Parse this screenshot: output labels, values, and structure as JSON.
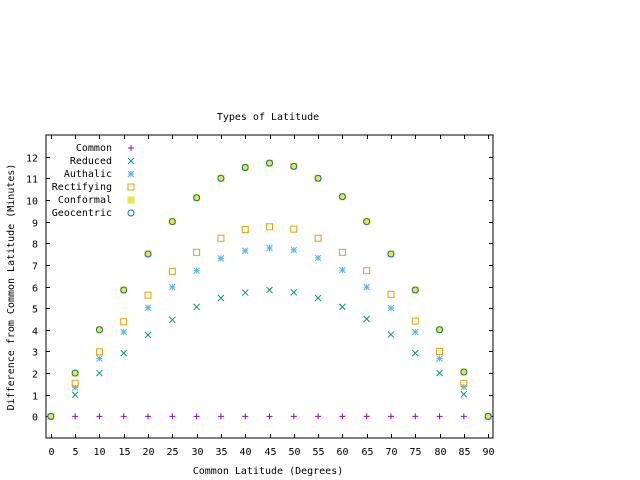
{
  "chart_data": {
    "type": "scatter",
    "title": "Types of Latitude",
    "xlabel": "Common Latitude (Degrees)",
    "ylabel": "Difference from Common Latitude (Minutes)",
    "xlim": [
      -1,
      91
    ],
    "ylim": [
      -1,
      13
    ],
    "xticks": [
      0,
      5,
      10,
      15,
      20,
      25,
      30,
      35,
      40,
      45,
      50,
      55,
      60,
      65,
      70,
      75,
      80,
      85,
      90
    ],
    "yticks": [
      0,
      1,
      2,
      3,
      4,
      5,
      6,
      7,
      8,
      9,
      10,
      11,
      12
    ],
    "legend_position": "top-left",
    "x": [
      0,
      5,
      10,
      15,
      20,
      25,
      30,
      35,
      40,
      45,
      50,
      55,
      60,
      65,
      70,
      75,
      80,
      85,
      90
    ],
    "series": [
      {
        "name": "Common",
        "marker": "plus",
        "color": "#9400d3",
        "values": [
          0,
          0,
          0,
          0,
          0,
          0,
          0,
          0,
          0,
          0,
          0,
          0,
          0,
          0,
          0,
          0,
          0,
          0,
          0
        ]
      },
      {
        "name": "Reduced",
        "marker": "cross",
        "color": "#009e73",
        "values": [
          0,
          1.0,
          2.0,
          2.92,
          3.76,
          4.46,
          5.06,
          5.47,
          5.72,
          5.84,
          5.73,
          5.47,
          5.06,
          4.5,
          3.78,
          2.92,
          2.0,
          1.02,
          0
        ]
      },
      {
        "name": "Authalic",
        "marker": "star",
        "color": "#56b4e9",
        "values": [
          0,
          1.33,
          2.67,
          3.9,
          5.02,
          5.97,
          6.73,
          7.3,
          7.65,
          7.78,
          7.69,
          7.32,
          6.76,
          5.97,
          5.0,
          3.9,
          2.67,
          1.36,
          0
        ]
      },
      {
        "name": "Rectifying",
        "marker": "square",
        "color": "#e69f00",
        "values": [
          0,
          1.53,
          2.98,
          4.37,
          5.6,
          6.7,
          7.58,
          8.23,
          8.63,
          8.76,
          8.65,
          8.23,
          7.58,
          6.73,
          5.64,
          4.4,
          3.0,
          1.53,
          0
        ]
      },
      {
        "name": "Conformal",
        "marker": "filled-square",
        "color": "#f0e442",
        "values": [
          0,
          2.0,
          4.0,
          5.84,
          7.5,
          9.0,
          10.1,
          11.0,
          11.5,
          11.7,
          11.55,
          11.0,
          10.15,
          9.0,
          7.5,
          5.84,
          4.0,
          2.05,
          0
        ]
      },
      {
        "name": "Geocentric",
        "marker": "circle",
        "color": "#0072b2",
        "values": [
          0,
          2.0,
          4.0,
          5.84,
          7.5,
          9.0,
          10.1,
          11.0,
          11.5,
          11.7,
          11.55,
          11.0,
          10.15,
          9.0,
          7.5,
          5.84,
          4.0,
          2.05,
          0
        ]
      }
    ]
  }
}
